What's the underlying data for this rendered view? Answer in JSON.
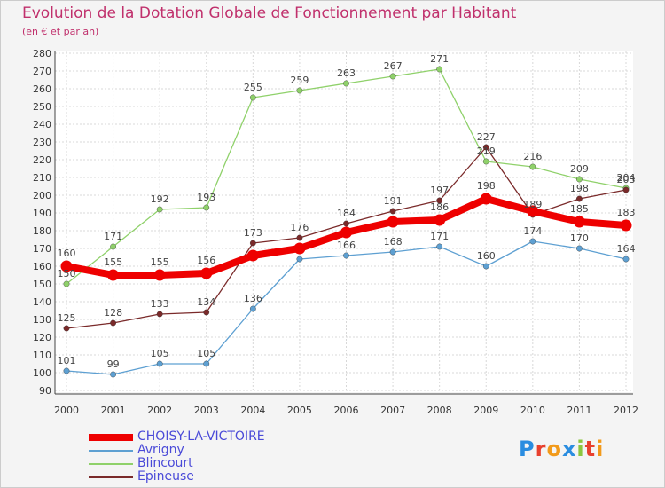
{
  "header": {
    "title": "Evolution de la Dotation Globale de Fonctionnement par Habitant",
    "subtitle": "(en € et par an)"
  },
  "logo": {
    "text": "Proxiti",
    "letter_colors": [
      "#2a8de0",
      "#e8402e",
      "#f29a1a",
      "#2a8de0",
      "#8cc63f",
      "#e8402e",
      "#f29a1a"
    ]
  },
  "chart_data": {
    "type": "line",
    "title": "Evolution de la Dotation Globale de Fonctionnement par Habitant",
    "subtitle": "(en € et par an)",
    "xlabel": "",
    "ylabel": "",
    "x": [
      "2000",
      "2001",
      "2002",
      "2003",
      "2004",
      "2005",
      "2006",
      "2007",
      "2008",
      "2009",
      "2010",
      "2011",
      "2012"
    ],
    "ylim": [
      90,
      280
    ],
    "yticks": [
      90,
      100,
      110,
      120,
      130,
      140,
      150,
      160,
      170,
      180,
      190,
      200,
      210,
      220,
      230,
      240,
      250,
      260,
      270,
      280
    ],
    "grid": true,
    "legend_position": "bottom-left",
    "series": [
      {
        "name": "CHOISY-LA-VICTOIRE",
        "color": "#ee0000",
        "values": [
          160,
          155,
          155,
          156,
          166,
          170,
          179,
          185,
          186,
          198,
          191,
          185,
          183
        ],
        "labels": [
          "160",
          "155",
          "155",
          "156",
          "",
          "",
          "",
          "",
          "186",
          "198",
          "",
          "185",
          "183"
        ],
        "emphasis": true
      },
      {
        "name": "Avrigny",
        "color": "#5ea0d2",
        "values": [
          101,
          99,
          105,
          105,
          136,
          164,
          166,
          168,
          171,
          160,
          174,
          170,
          164
        ],
        "labels": [
          "101",
          "99",
          "105",
          "105",
          "136",
          "",
          "166",
          "168",
          "171",
          "160",
          "174",
          "170",
          "164"
        ],
        "emphasis": false
      },
      {
        "name": "Blincourt",
        "color": "#8fd16a",
        "values": [
          150,
          171,
          192,
          193,
          255,
          259,
          263,
          267,
          271,
          219,
          216,
          209,
          204
        ],
        "labels": [
          "150",
          "171",
          "192",
          "193",
          "255",
          "259",
          "263",
          "267",
          "271",
          "219",
          "216",
          "209",
          "204"
        ],
        "emphasis": false
      },
      {
        "name": "Epineuse",
        "color": "#7a2a2a",
        "values": [
          125,
          128,
          133,
          134,
          173,
          176,
          184,
          191,
          197,
          227,
          189,
          198,
          203
        ],
        "labels": [
          "125",
          "128",
          "133",
          "134",
          "173",
          "176",
          "184",
          "191",
          "197",
          "227",
          "189",
          "198",
          "203"
        ],
        "emphasis": false
      }
    ]
  }
}
